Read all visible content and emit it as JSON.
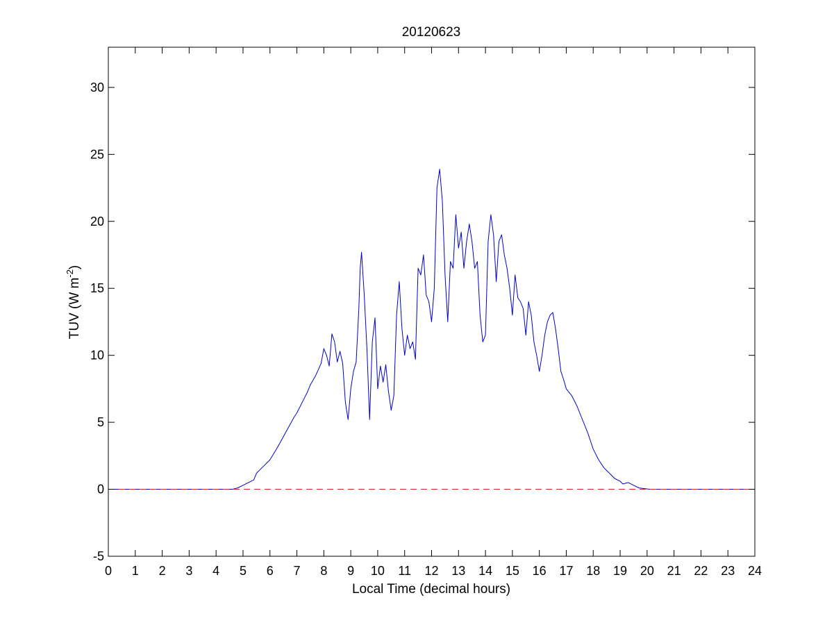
{
  "chart_data": {
    "type": "line",
    "title": "20120623",
    "xlabel": "Local Time (decimal hours)",
    "ylabel": "TUV (W m^-2)",
    "ylabel_parts": {
      "main": "TUV (W m",
      "sup": "-2",
      "close": ")"
    },
    "xlim": [
      0,
      24
    ],
    "ylim": [
      -5,
      33
    ],
    "x_ticks": [
      0,
      1,
      2,
      3,
      4,
      5,
      6,
      7,
      8,
      9,
      10,
      11,
      12,
      13,
      14,
      15,
      16,
      17,
      18,
      19,
      20,
      21,
      22,
      23,
      24
    ],
    "x_tick_labels": [
      "0",
      "1",
      "2",
      "3",
      "4",
      "5",
      "6",
      "7",
      "8",
      "9",
      "10",
      "11",
      "12",
      "13",
      "14",
      "15",
      "16",
      "17",
      "18",
      "19",
      "20",
      "21",
      "22",
      "23",
      "24"
    ],
    "y_ticks": [
      -5,
      0,
      5,
      10,
      15,
      20,
      25,
      30
    ],
    "y_tick_labels": [
      "-5",
      "0",
      "5",
      "10",
      "15",
      "20",
      "25",
      "30"
    ],
    "grid": false,
    "colors": {
      "series": "#0000cc",
      "baseline": "#dd2222",
      "axes": "#000000"
    },
    "series": [
      {
        "style": "solid",
        "x": [
          0,
          4.6,
          4.8,
          5.0,
          5.2,
          5.4,
          5.5,
          5.7,
          6.0,
          6.3,
          6.6,
          6.9,
          7.0,
          7.2,
          7.4,
          7.5,
          7.7,
          7.9,
          8.0,
          8.1,
          8.2,
          8.3,
          8.4,
          8.5,
          8.6,
          8.7,
          8.8,
          8.9,
          9.0,
          9.1,
          9.2,
          9.3,
          9.35,
          9.4,
          9.5,
          9.6,
          9.7,
          9.8,
          9.9,
          10.0,
          10.1,
          10.2,
          10.3,
          10.4,
          10.5,
          10.6,
          10.7,
          10.8,
          10.9,
          11.0,
          11.1,
          11.2,
          11.3,
          11.4,
          11.5,
          11.6,
          11.7,
          11.8,
          11.9,
          12.0,
          12.1,
          12.2,
          12.3,
          12.4,
          12.5,
          12.6,
          12.7,
          12.8,
          12.9,
          13.0,
          13.1,
          13.2,
          13.3,
          13.4,
          13.5,
          13.6,
          13.7,
          13.8,
          13.9,
          14.0,
          14.1,
          14.2,
          14.3,
          14.4,
          14.5,
          14.6,
          14.7,
          14.8,
          14.9,
          15.0,
          15.1,
          15.2,
          15.3,
          15.4,
          15.5,
          15.6,
          15.7,
          15.8,
          15.9,
          16.0,
          16.1,
          16.2,
          16.3,
          16.4,
          16.5,
          16.6,
          16.7,
          16.8,
          16.9,
          17.0,
          17.2,
          17.4,
          17.6,
          17.8,
          18.0,
          18.2,
          18.4,
          18.6,
          18.8,
          19.0,
          19.1,
          19.3,
          19.5,
          19.7,
          19.9,
          20.1,
          24
        ],
        "y": [
          0,
          0,
          0.1,
          0.3,
          0.5,
          0.7,
          1.2,
          1.6,
          2.2,
          3.2,
          4.3,
          5.4,
          5.7,
          6.5,
          7.3,
          7.8,
          8.5,
          9.4,
          10.5,
          10.0,
          9.2,
          11.6,
          11.0,
          9.5,
          10.3,
          9.4,
          6.5,
          5.2,
          7.5,
          8.8,
          9.5,
          13.5,
          16.5,
          17.7,
          14.5,
          10.5,
          5.2,
          11.0,
          12.8,
          7.5,
          9.2,
          8.0,
          9.3,
          7.3,
          5.9,
          7.0,
          13.0,
          15.5,
          12.0,
          10.0,
          11.5,
          10.5,
          11.0,
          9.7,
          16.5,
          16.0,
          17.5,
          14.5,
          14.0,
          12.5,
          15.0,
          22.5,
          23.9,
          21.5,
          16.0,
          12.5,
          17.0,
          16.5,
          20.5,
          18.0,
          19.2,
          16.5,
          18.5,
          19.8,
          18.5,
          16.5,
          17.0,
          13.0,
          11.0,
          11.5,
          18.5,
          20.5,
          19.0,
          15.5,
          18.5,
          19.0,
          17.5,
          16.5,
          15.0,
          13.0,
          16.0,
          14.3,
          14.0,
          13.5,
          11.5,
          14.0,
          13.0,
          11.0,
          10.0,
          8.8,
          10.0,
          11.5,
          12.5,
          13.0,
          13.2,
          12.0,
          10.5,
          8.8,
          8.2,
          7.5,
          7.0,
          6.2,
          5.2,
          4.2,
          3.0,
          2.2,
          1.6,
          1.2,
          0.8,
          0.6,
          0.4,
          0.5,
          0.3,
          0.1,
          0.05,
          0,
          0
        ]
      },
      {
        "style": "dashed",
        "x": [
          0,
          24
        ],
        "y": [
          0,
          0
        ]
      }
    ]
  }
}
